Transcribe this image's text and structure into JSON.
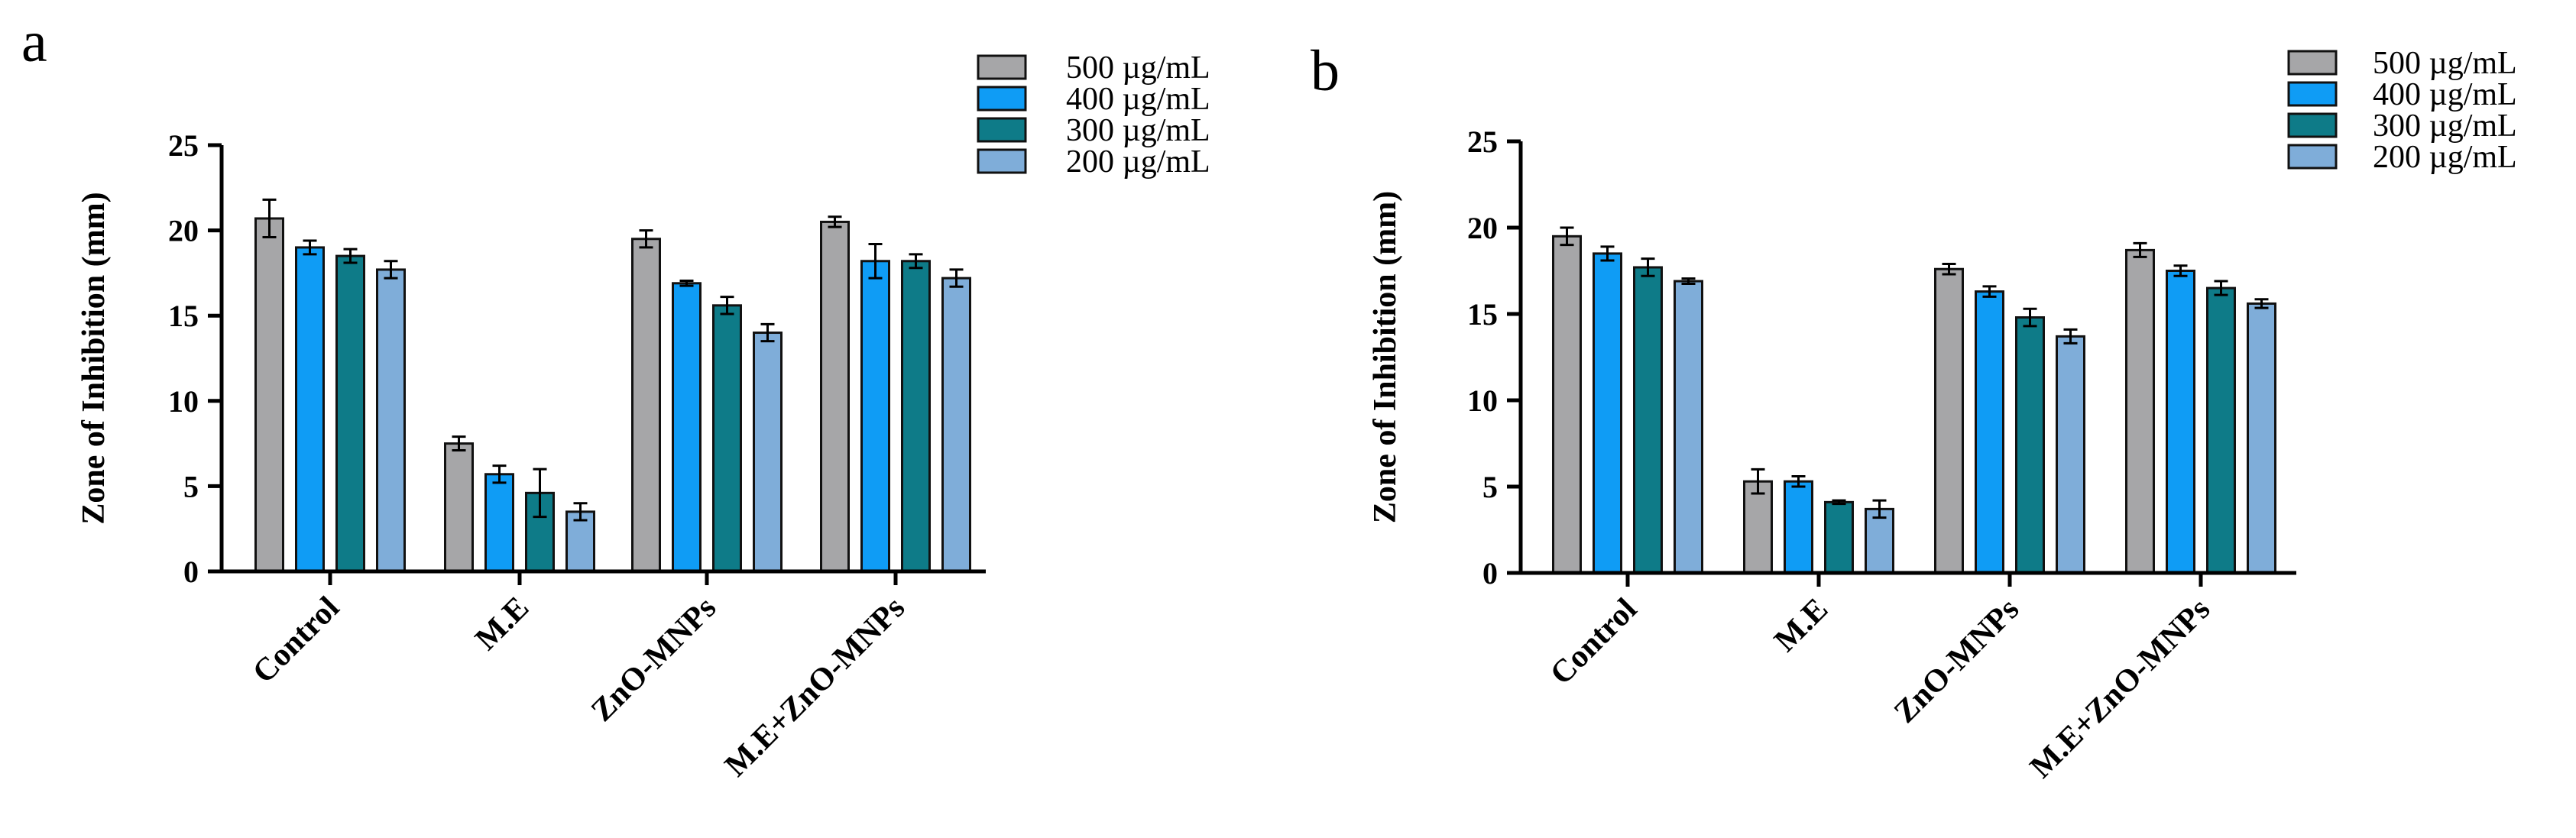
{
  "chart_data": [
    {
      "type": "bar",
      "panel_label": "a",
      "categories": [
        "Control",
        "M.E",
        "ZnO-MNPs",
        "M.E+ZnO-MNPs"
      ],
      "ylabel": "Zone of Inhibition (mm)",
      "xlabel": "",
      "ylim": [
        0,
        25
      ],
      "yticks": [
        0,
        5,
        10,
        15,
        20,
        25
      ],
      "legend_position": "top-right",
      "series": [
        {
          "name": "500 µg/mL",
          "color": "#a6a6a8",
          "values": [
            20.7,
            7.5,
            19.5,
            20.5
          ],
          "errors": [
            1.1,
            0.4,
            0.5,
            0.3
          ]
        },
        {
          "name": "400 µg/mL",
          "color": "#0f9cf5",
          "values": [
            19.0,
            5.7,
            16.9,
            18.2
          ],
          "errors": [
            0.4,
            0.5,
            0.15,
            1.0
          ]
        },
        {
          "name": "300 µg/mL",
          "color": "#0e7b88",
          "values": [
            18.5,
            4.6,
            15.6,
            18.2
          ],
          "errors": [
            0.4,
            1.4,
            0.5,
            0.4
          ]
        },
        {
          "name": "200 µg/mL",
          "color": "#7fadd9",
          "values": [
            17.7,
            3.5,
            14.0,
            17.2
          ],
          "errors": [
            0.5,
            0.5,
            0.5,
            0.5
          ]
        }
      ]
    },
    {
      "type": "bar",
      "panel_label": "b",
      "categories": [
        "Control",
        "M.E",
        "ZnO-MNPs",
        "M.E+ZnO-MNPs"
      ],
      "ylabel": "Zone of Inhibition (mm)",
      "xlabel": "",
      "ylim": [
        0,
        25
      ],
      "yticks": [
        0,
        5,
        10,
        15,
        20,
        25
      ],
      "legend_position": "top-right",
      "series": [
        {
          "name": "500 µg/mL",
          "color": "#a6a6a8",
          "values": [
            19.5,
            5.3,
            17.6,
            18.7
          ],
          "errors": [
            0.5,
            0.7,
            0.3,
            0.4
          ]
        },
        {
          "name": "400 µg/mL",
          "color": "#0f9cf5",
          "values": [
            18.5,
            5.3,
            16.3,
            17.5
          ],
          "errors": [
            0.4,
            0.3,
            0.3,
            0.3
          ]
        },
        {
          "name": "300 µg/mL",
          "color": "#0e7b88",
          "values": [
            17.7,
            4.1,
            14.8,
            16.5
          ],
          "errors": [
            0.5,
            0.1,
            0.5,
            0.4
          ]
        },
        {
          "name": "200 µg/mL",
          "color": "#7fadd9",
          "values": [
            16.9,
            3.7,
            13.7,
            15.6
          ],
          "errors": [
            0.15,
            0.5,
            0.4,
            0.25
          ]
        }
      ]
    }
  ]
}
